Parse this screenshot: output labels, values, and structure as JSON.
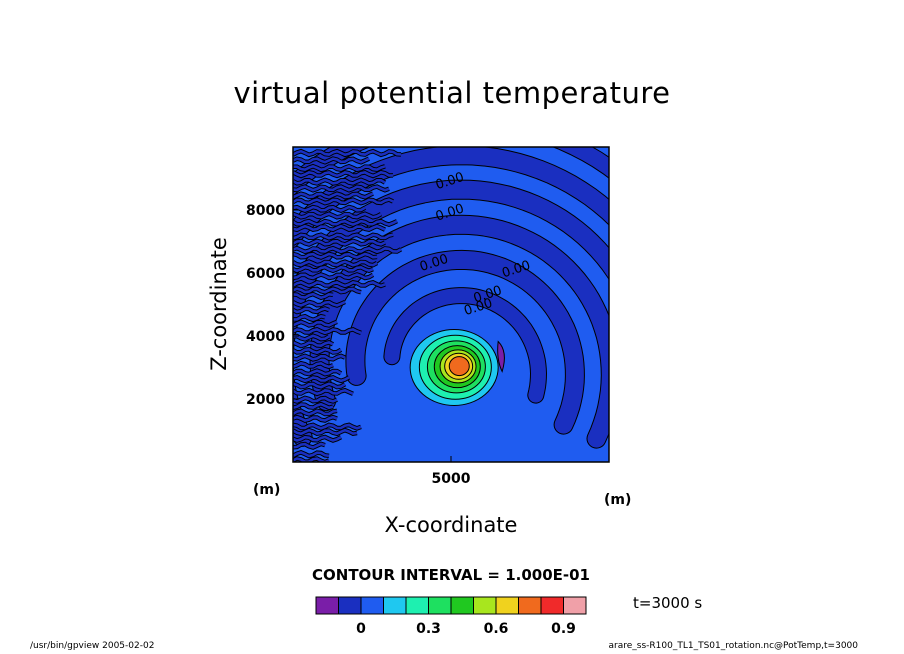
{
  "chart_data": {
    "type": "heatmap",
    "subtype": "filled contour",
    "title": "virtual potential temperature",
    "xlabel": "X-coordinate",
    "ylabel": "Z-coordinate",
    "x_unit": "(m)",
    "y_unit": "(m)",
    "x_ticks": [
      5000
    ],
    "y_ticks": [
      2000,
      4000,
      6000,
      8000
    ],
    "xlim": [
      0,
      10000
    ],
    "ylim": [
      0,
      10000
    ],
    "contour_labels": [
      {
        "text": "0.00",
        "x": 5000,
        "y": 8800
      },
      {
        "text": "0.00",
        "x": 5000,
        "y": 7800
      },
      {
        "text": "0.00",
        "x": 4500,
        "y": 6200
      },
      {
        "text": "0.00",
        "x": 7100,
        "y": 6000
      },
      {
        "text": "0.00",
        "x": 6200,
        "y": 5200
      },
      {
        "text": "0.00",
        "x": 5900,
        "y": 4800
      }
    ],
    "anomaly": {
      "center_x": 5100,
      "center_z": 3000,
      "peak_value": 0.9
    },
    "contour_interval_text": "CONTOUR INTERVAL = 1.000E-01",
    "colorbar": {
      "colors": [
        "#7a1ea8",
        "#1a2fc0",
        "#1f5cf0",
        "#1fc8f0",
        "#1ef0b0",
        "#1ee060",
        "#20c820",
        "#a8e61e",
        "#f0d21e",
        "#f06a1e",
        "#f02a2a",
        "#f0a0a8"
      ],
      "tick_values": [
        0,
        0.3,
        0.6,
        0.9
      ],
      "tick_labels": [
        "0",
        "0.3",
        "0.6",
        "0.9"
      ],
      "bounds": [
        -0.2,
        1.0
      ]
    },
    "time_label": "t=3000 s"
  },
  "footer": {
    "left": "/usr/bin/gpview  2005-02-02",
    "right": "arare_ss-R100_TL1_TS01_rotation.nc@PotTemp,t=3000"
  }
}
